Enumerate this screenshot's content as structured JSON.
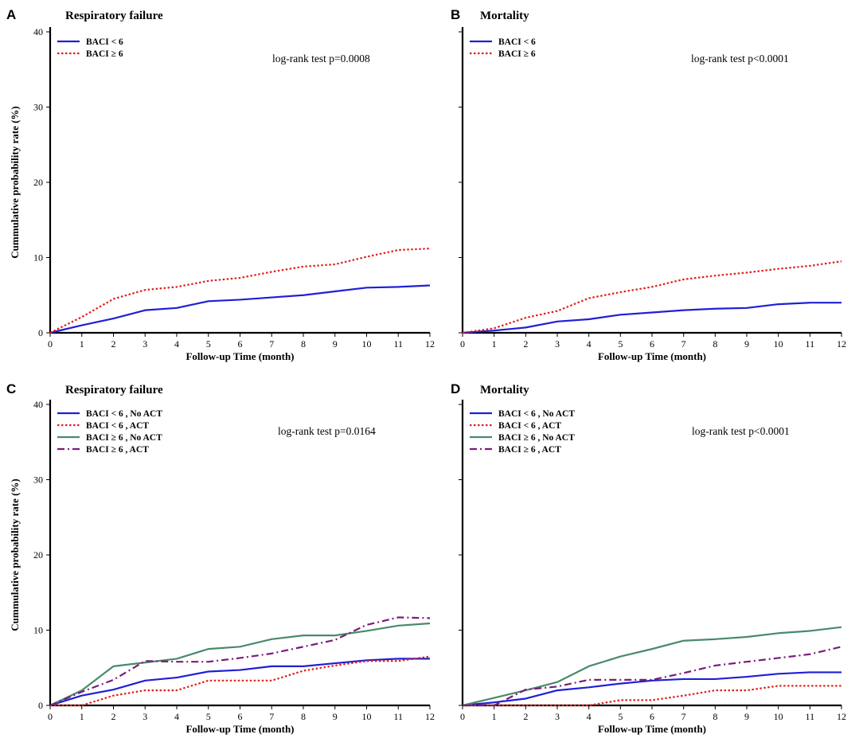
{
  "chart_data": [
    {
      "type": "line",
      "panel_letter": "A",
      "title": "Respiratory failure",
      "xlabel": "Follow-up Time (month)",
      "ylabel": "Cummulative probability rate (%)",
      "xlim": [
        0,
        12
      ],
      "ylim": [
        0,
        40
      ],
      "xticks": [
        "0",
        "1",
        "2",
        "3",
        "4",
        "5",
        "6",
        "7",
        "8",
        "9",
        "10",
        "11",
        "12"
      ],
      "yticks": [
        "0",
        "10",
        "20",
        "30",
        "40"
      ],
      "annotation": "log-rank test p=0.0008",
      "legend_position": "top-left",
      "x": [
        0,
        1,
        2,
        3,
        4,
        5,
        6,
        7,
        8,
        9,
        10,
        11,
        12
      ],
      "series": [
        {
          "name": "BACI < 6",
          "color": "#1f1fd6",
          "style": "solid",
          "values": [
            0,
            1.0,
            1.9,
            3.0,
            3.3,
            4.2,
            4.4,
            4.7,
            5.0,
            5.5,
            6.0,
            6.1,
            6.3
          ]
        },
        {
          "name": "BACI ≥ 6",
          "color": "#e0201c",
          "style": "dotted",
          "values": [
            0,
            2.1,
            4.5,
            5.7,
            6.1,
            6.9,
            7.3,
            8.1,
            8.8,
            9.1,
            10.1,
            11.0,
            11.2
          ]
        }
      ]
    },
    {
      "type": "line",
      "panel_letter": "B",
      "title": "Mortality",
      "xlabel": "Follow-up Time (month)",
      "ylabel": "",
      "xlim": [
        0,
        12
      ],
      "ylim": [
        0,
        40
      ],
      "xticks": [
        "0",
        "1",
        "2",
        "3",
        "4",
        "5",
        "6",
        "7",
        "8",
        "9",
        "10",
        "11",
        "12"
      ],
      "yticks": [
        "",
        "",
        "",
        "",
        ""
      ],
      "annotation": "log-rank test p<0.0001",
      "legend_position": "top-left",
      "x": [
        0,
        1,
        2,
        3,
        4,
        5,
        6,
        7,
        8,
        9,
        10,
        11,
        12
      ],
      "series": [
        {
          "name": "BACI < 6",
          "color": "#1f1fd6",
          "style": "solid",
          "values": [
            0,
            0.3,
            0.7,
            1.5,
            1.8,
            2.4,
            2.7,
            3.0,
            3.2,
            3.3,
            3.8,
            4.0,
            4.0
          ]
        },
        {
          "name": "BACI ≥ 6",
          "color": "#e0201c",
          "style": "dotted",
          "values": [
            0,
            0.6,
            2.0,
            2.9,
            4.6,
            5.4,
            6.1,
            7.1,
            7.6,
            8.0,
            8.5,
            8.9,
            9.5
          ]
        }
      ]
    },
    {
      "type": "line",
      "panel_letter": "C",
      "title": "Respiratory failure",
      "xlabel": "Follow-up Time (month)",
      "ylabel": "Cummulative probability rate (%)",
      "xlim": [
        0,
        12
      ],
      "ylim": [
        0,
        40
      ],
      "xticks": [
        "0",
        "1",
        "2",
        "3",
        "4",
        "5",
        "6",
        "7",
        "8",
        "9",
        "10",
        "11",
        "12"
      ],
      "yticks": [
        "0",
        "10",
        "20",
        "30",
        "40"
      ],
      "annotation": "log-rank test p=0.0164",
      "legend_position": "top-left",
      "x": [
        0,
        1,
        2,
        3,
        4,
        5,
        6,
        7,
        8,
        9,
        10,
        11,
        12
      ],
      "series": [
        {
          "name": "BACI < 6 , No ACT",
          "color": "#1f1fd6",
          "style": "solid",
          "values": [
            0,
            1.3,
            2.1,
            3.3,
            3.7,
            4.5,
            4.7,
            5.2,
            5.2,
            5.6,
            6.0,
            6.2,
            6.2
          ]
        },
        {
          "name": "BACI < 6 , ACT",
          "color": "#e0201c",
          "style": "dotted",
          "values": [
            0,
            0,
            1.3,
            2.0,
            2.0,
            3.3,
            3.3,
            3.3,
            4.6,
            5.3,
            5.9,
            5.9,
            6.5
          ]
        },
        {
          "name": "BACI ≥ 6 , No ACT",
          "color": "#4a8a6a",
          "style": "solid",
          "values": [
            0,
            2.0,
            5.2,
            5.7,
            6.2,
            7.5,
            7.8,
            8.8,
            9.3,
            9.3,
            9.9,
            10.6,
            10.9
          ]
        },
        {
          "name": "BACI ≥ 6 , ACT",
          "color": "#7a1c78",
          "style": "dashdot",
          "values": [
            0,
            1.8,
            3.4,
            5.9,
            5.8,
            5.8,
            6.3,
            6.9,
            7.8,
            8.7,
            10.7,
            11.7,
            11.6
          ]
        }
      ]
    },
    {
      "type": "line",
      "panel_letter": "D",
      "title": "Mortality",
      "xlabel": "Follow-up Time (month)",
      "ylabel": "",
      "xlim": [
        0,
        12
      ],
      "ylim": [
        0,
        40
      ],
      "xticks": [
        "0",
        "1",
        "2",
        "3",
        "4",
        "5",
        "6",
        "7",
        "8",
        "9",
        "10",
        "11",
        "12"
      ],
      "yticks": [
        "",
        "",
        "",
        "",
        ""
      ],
      "annotation": "log-rank test p<0.0001",
      "legend_position": "top-left",
      "x": [
        0,
        1,
        2,
        3,
        4,
        5,
        6,
        7,
        8,
        9,
        10,
        11,
        12
      ],
      "series": [
        {
          "name": "BACI < 6 , No ACT",
          "color": "#1f1fd6",
          "style": "solid",
          "values": [
            0,
            0.4,
            0.9,
            2.0,
            2.4,
            2.9,
            3.3,
            3.5,
            3.5,
            3.8,
            4.2,
            4.4,
            4.4
          ]
        },
        {
          "name": "BACI < 6 , ACT",
          "color": "#e0201c",
          "style": "dotted",
          "values": [
            0,
            0,
            0,
            0,
            0,
            0.7,
            0.7,
            1.3,
            2.0,
            2.0,
            2.6,
            2.6,
            2.6
          ]
        },
        {
          "name": "BACI ≥ 6 , No ACT",
          "color": "#4a8a6a",
          "style": "solid",
          "values": [
            0,
            1.0,
            2.0,
            3.1,
            5.2,
            6.5,
            7.5,
            8.6,
            8.8,
            9.1,
            9.6,
            9.9,
            10.4
          ]
        },
        {
          "name": "BACI ≥ 6 , ACT",
          "color": "#7a1c78",
          "style": "dashdot",
          "values": [
            0,
            0,
            2.1,
            2.5,
            3.4,
            3.4,
            3.4,
            4.3,
            5.3,
            5.8,
            6.3,
            6.8,
            7.8
          ]
        }
      ]
    }
  ]
}
